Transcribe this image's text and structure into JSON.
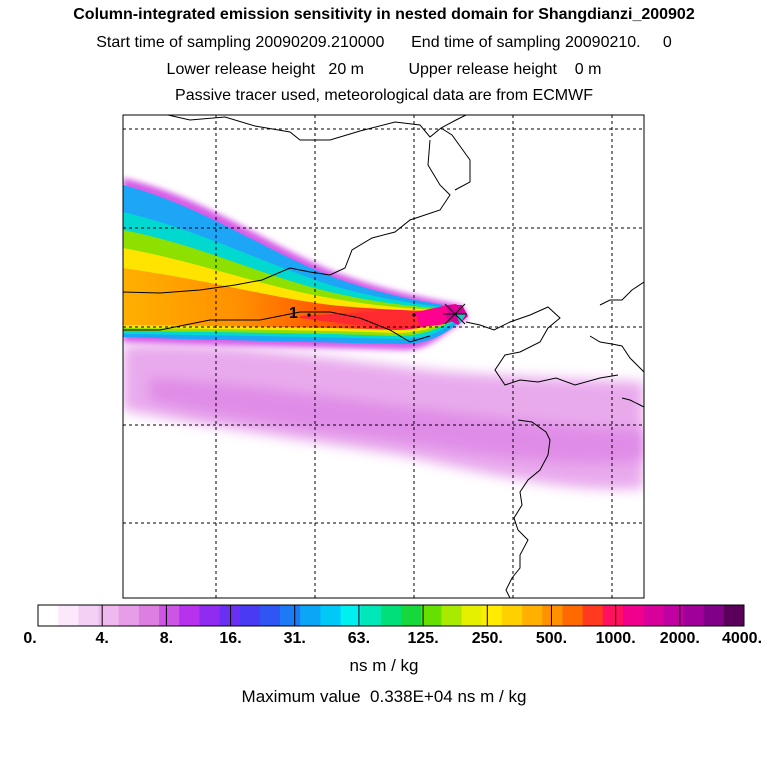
{
  "header": {
    "title": "Column-integrated emission sensitivity in nested domain for Shangdianzi_200902",
    "sampling_line": "Start time of sampling 20090209.210000      End time of sampling 20090210.     0",
    "release_line": "Lower release height   20 m          Upper release height    0 m",
    "tracer_line": "Passive tracer used, meteorological data are from ECMWF"
  },
  "chart_data": {
    "type": "heatmap",
    "title": "Column-integrated emission sensitivity in nested domain for Shangdianzi_200902",
    "colorbar": {
      "tick_labels": [
        "0.",
        "4.",
        "8.",
        "16.",
        "31.",
        "63.",
        "125.",
        "250.",
        "500.",
        "1000.",
        "2000.",
        "4000."
      ],
      "unit_label": "ns m / kg",
      "colors": [
        "#ffffff",
        "#fbe8fb",
        "#f5d0f5",
        "#efb8ef",
        "#e79de8",
        "#dc7fe0",
        "#cc55e6",
        "#b632ec",
        "#8f2cf0",
        "#6a2ff2",
        "#4a3af3",
        "#2f55f5",
        "#1d7af6",
        "#0ca6f7",
        "#00c8f7",
        "#00f0f0",
        "#00e8b8",
        "#00e07a",
        "#16d83a",
        "#66e000",
        "#a8ea00",
        "#e4f000",
        "#ffec00",
        "#ffd000",
        "#ffb000",
        "#ff9000",
        "#ff6a00",
        "#ff3a20",
        "#ff1060",
        "#f0008c",
        "#d8009a",
        "#c000a0",
        "#a00098",
        "#800088",
        "#5a005a"
      ]
    },
    "max_value_label": "Maximum value  0.338E+04 ns m / kg",
    "markers": [
      {
        "label": "1",
        "desc": "release point"
      },
      {
        "label": "",
        "desc": "receptor cross"
      }
    ],
    "grid": true
  }
}
